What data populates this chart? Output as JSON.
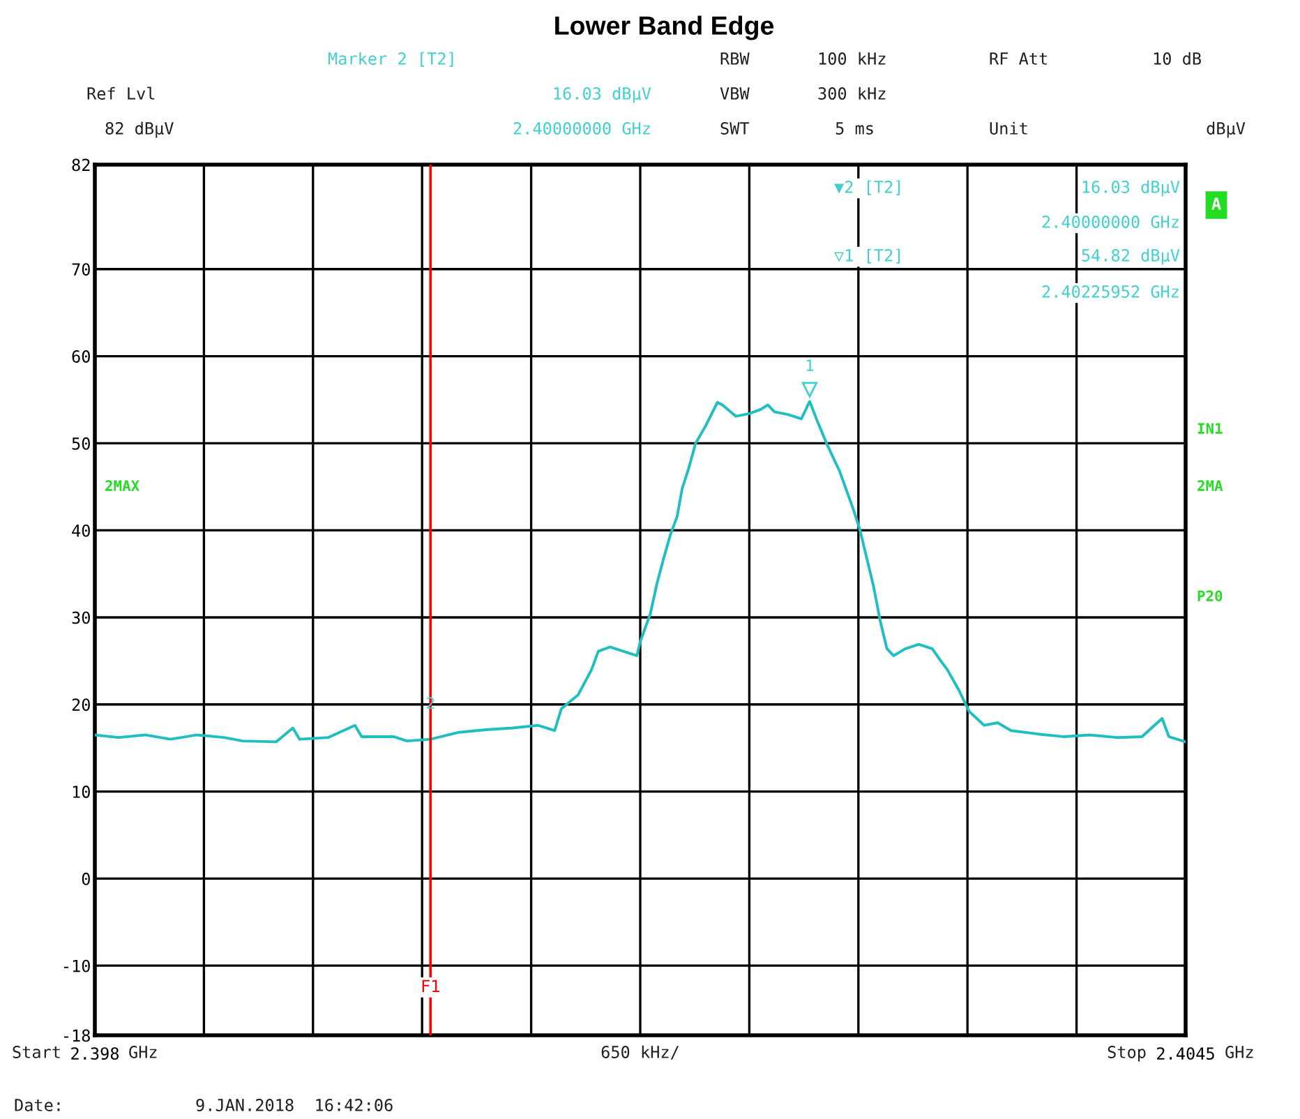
{
  "chart_data": {
    "type": "line",
    "title": "Lower Band Edge",
    "xlim": [
      2.398,
      2.4045
    ],
    "ylim": [
      -18,
      82
    ],
    "xticks": [
      {
        "value": 2.398,
        "label": "2.398"
      },
      {
        "value": 2.39865,
        "label": null
      },
      {
        "value": 2.3993,
        "label": null
      },
      {
        "value": 2.39995,
        "label": null
      },
      {
        "value": 2.4006,
        "label": null
      },
      {
        "value": 2.40125,
        "label": null
      },
      {
        "value": 2.4019,
        "label": null
      },
      {
        "value": 2.40255,
        "label": null
      },
      {
        "value": 2.4032,
        "label": null
      },
      {
        "value": 2.40385,
        "label": null
      },
      {
        "value": 2.4045,
        "label": "2.4045"
      }
    ],
    "yticks": [
      82,
      70,
      60,
      50,
      40,
      30,
      20,
      10,
      0,
      -10,
      -18
    ],
    "grid": true,
    "marker": "none",
    "line_style": "solid",
    "x": [
      2.398,
      2.39814,
      2.3983,
      2.39845,
      2.39861,
      2.39877,
      2.39888,
      2.39908,
      2.39918,
      2.39922,
      2.39939,
      2.39955,
      2.39959,
      2.39978,
      2.39986,
      2.4,
      2.40017,
      2.40033,
      2.40049,
      2.40064,
      2.40074,
      2.40078,
      2.40088,
      2.40096,
      2.401,
      2.40107,
      2.40115,
      2.40123,
      2.40125,
      2.40131,
      2.40135,
      2.40139,
      2.40143,
      2.40147,
      2.4015,
      2.40154,
      2.40158,
      2.40164,
      2.40171,
      2.40174,
      2.40182,
      2.4019,
      2.40197,
      2.40201,
      2.40205,
      2.40213,
      2.40221,
      2.40226,
      2.4023,
      2.40236,
      2.40244,
      2.40252,
      2.40256,
      2.4026,
      2.40264,
      2.40268,
      2.40272,
      2.40276,
      2.40283,
      2.40291,
      2.40299,
      2.40303,
      2.40308,
      2.40315,
      2.40321,
      2.4033,
      2.40338,
      2.40346,
      2.40362,
      2.40377,
      2.40393,
      2.40409,
      2.40424,
      2.40436,
      2.4044,
      2.4045
    ],
    "series": [
      {
        "color": "#1fbfbf",
        "values": [
          16.5,
          16.2,
          16.5,
          16.0,
          16.5,
          16.2,
          15.8,
          15.7,
          17.3,
          16.0,
          16.2,
          17.6,
          16.3,
          16.3,
          15.8,
          16.0,
          16.8,
          17.1,
          17.3,
          17.6,
          17.0,
          19.5,
          21.1,
          24.0,
          26.1,
          26.6,
          26.1,
          25.6,
          27.2,
          30.4,
          33.9,
          36.8,
          39.5,
          41.6,
          44.8,
          47.2,
          50.0,
          52.0,
          54.7,
          54.4,
          53.1,
          53.4,
          53.9,
          54.4,
          53.6,
          53.3,
          52.8,
          54.8,
          52.8,
          50.0,
          46.7,
          42.4,
          40.0,
          36.8,
          33.6,
          29.6,
          26.4,
          25.6,
          26.4,
          26.9,
          26.4,
          25.3,
          24.0,
          21.6,
          19.2,
          17.6,
          17.9,
          17.0,
          16.6,
          16.3,
          16.5,
          16.2,
          16.3,
          18.4,
          16.3,
          15.7
        ]
      }
    ],
    "ref_lines": [
      {
        "axis": "x",
        "value": 2.4,
        "label": "F1",
        "color": "#ff0000"
      }
    ],
    "annotations": [
      "Marker 2 [T2]",
      "RBW",
      "100 kHz",
      "RF Att",
      "10 dB",
      "Ref Lvl",
      "16.03 dBµV",
      "VBW",
      "300 kHz",
      "82 dBµV",
      "2.40000000 GHz",
      "SWT",
      "5 ms",
      "Unit",
      "dBµV",
      "▼2 [T2]",
      "16.03 dBµV",
      "2.40000000 GHz",
      "▽1 [T2]",
      "54.82 dBµV",
      "2.40225952 GHz",
      "A",
      "IN1",
      "2MA",
      "P20",
      "2MAX",
      "Date:",
      "9.JAN.2018  16:42:06",
      "650 kHz/",
      "Start",
      "GHz",
      "Stop",
      "GHz",
      {
        "text": "1",
        "x": 2.40225952,
        "y": 54.82
      },
      {
        "text": "2",
        "x": 2.4,
        "y": 16.03
      }
    ]
  }
}
